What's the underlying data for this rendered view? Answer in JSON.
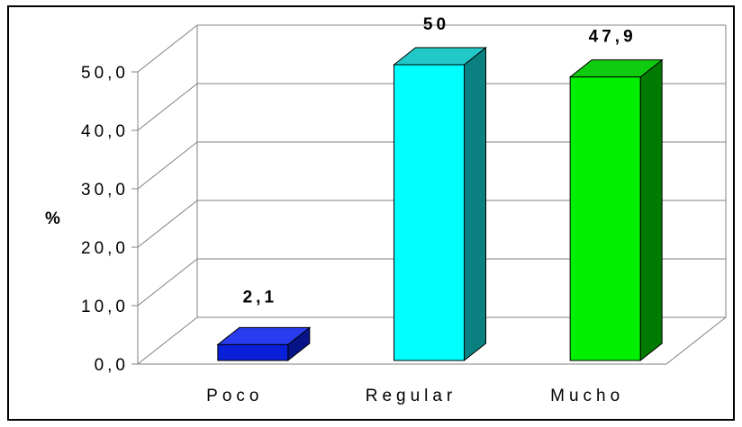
{
  "chart_data": {
    "type": "bar",
    "categories": [
      "Poco",
      "Regular",
      "Mucho"
    ],
    "values": [
      2.1,
      50,
      47.9
    ],
    "data_labels": [
      "2,1",
      "50",
      "47,9"
    ],
    "yticks": [
      "0,0",
      "10,0",
      "20,0",
      "30,0",
      "40,0",
      "50,0"
    ],
    "ylabel": "%",
    "ylim": [
      0,
      50
    ],
    "grid": true,
    "colors": [
      {
        "front": "#0a20d8",
        "top": "#2a3cf0",
        "side": "#061488"
      },
      {
        "front": "#00ffff",
        "top": "#22c8c8",
        "side": "#0a8080"
      },
      {
        "front": "#00f000",
        "top": "#10cc10",
        "side": "#007a00"
      }
    ]
  }
}
